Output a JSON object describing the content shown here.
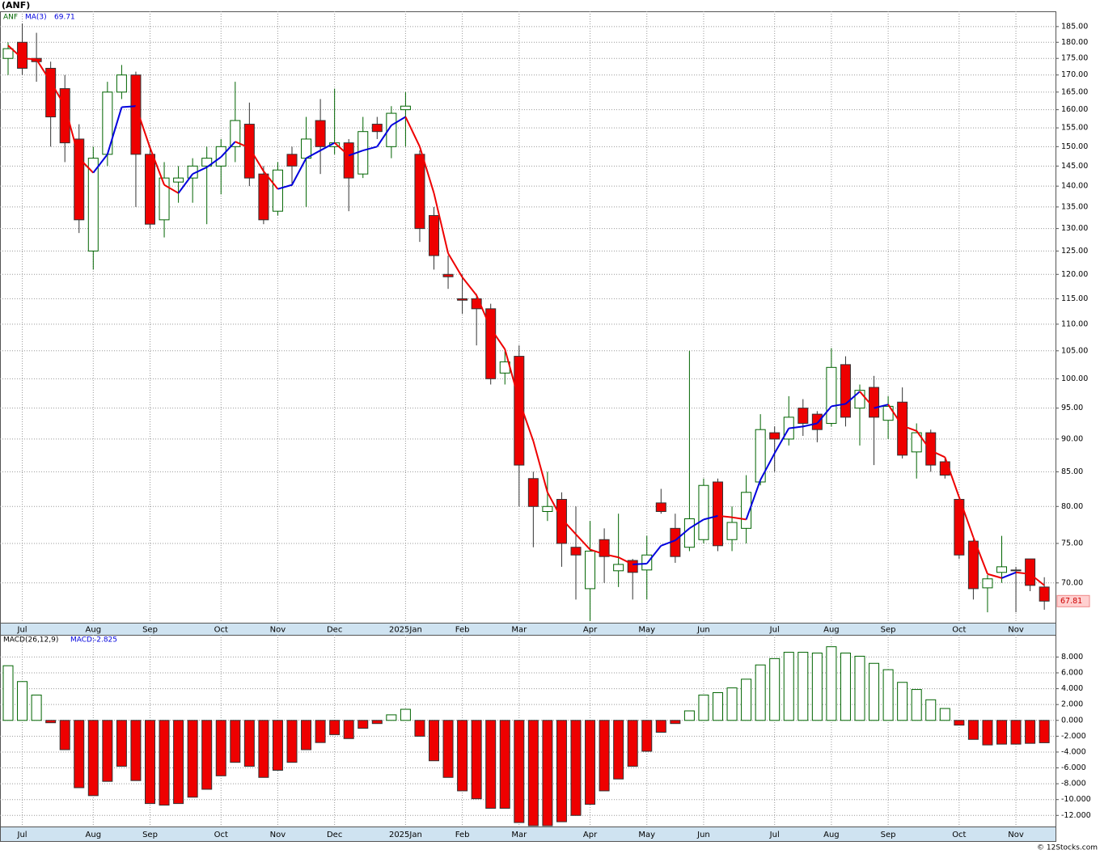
{
  "chart_data": [
    {
      "type": "candlestick",
      "title": "(ANF)",
      "categories": [
        null,
        "Jul",
        null,
        null,
        null,
        null,
        "Aug",
        null,
        null,
        null,
        "Sep",
        null,
        null,
        null,
        null,
        "Oct",
        null,
        null,
        null,
        "Nov",
        null,
        null,
        null,
        "Dec",
        null,
        null,
        null,
        null,
        "2025Jan",
        null,
        null,
        null,
        "Feb",
        null,
        null,
        null,
        "Mar",
        null,
        null,
        null,
        null,
        "Apr",
        null,
        null,
        null,
        "May",
        null,
        null,
        null,
        "Jun",
        null,
        null,
        null,
        null,
        "Jul",
        null,
        null,
        null,
        "Aug",
        null,
        null,
        null,
        "Sep",
        null,
        null,
        null,
        null,
        "Oct",
        null,
        null,
        null,
        "Nov",
        null,
        null
      ],
      "series": [
        {
          "name": "ANF",
          "color": "#006400",
          "down_color": "#ee0000",
          "open": [
            175,
            180,
            175,
            172,
            166,
            152,
            125,
            148,
            165,
            170,
            148,
            132,
            141,
            142,
            145,
            145,
            150,
            156,
            143,
            134,
            148,
            147,
            157,
            150,
            151,
            143,
            156,
            150,
            160,
            148,
            133,
            120,
            115,
            115,
            113,
            101,
            104,
            84,
            79.3,
            81,
            74.5,
            69.3,
            75.5,
            71.5,
            72.8,
            71.6,
            80.5,
            77,
            74.5,
            75.5,
            83.5,
            75.5,
            77,
            83.5,
            91,
            90,
            95,
            94,
            92.5,
            102.5,
            95,
            98.5,
            93,
            96,
            88,
            91,
            86.5,
            81,
            75.3,
            69.4,
            71.3,
            71.6,
            73,
            69.5
          ],
          "high": [
            180,
            186,
            183,
            174,
            170,
            156,
            150,
            168,
            173,
            171,
            150,
            146,
            145,
            147,
            150,
            152,
            168,
            162,
            145,
            146,
            150,
            158,
            163,
            166,
            152,
            158,
            158,
            161,
            165,
            149,
            135,
            124,
            120,
            116,
            114,
            105,
            106,
            85,
            85,
            82,
            80,
            78,
            77,
            79,
            73,
            76,
            82.5,
            79,
            105,
            84,
            84,
            80,
            84.5,
            94,
            92,
            97,
            96.5,
            94.5,
            105.5,
            104,
            99,
            100.5,
            97,
            98.5,
            92.5,
            91.5,
            87,
            81,
            75.5,
            71,
            76,
            72,
            73,
            70.7
          ],
          "low": [
            170,
            170,
            168,
            150,
            146,
            129,
            121,
            145,
            163,
            135,
            130,
            128,
            136,
            136,
            131,
            138,
            146,
            140,
            131,
            133,
            140,
            135,
            143,
            148,
            134,
            142,
            152,
            147,
            150,
            127,
            121,
            117,
            112,
            106,
            99,
            99,
            80,
            74.5,
            78,
            72,
            68,
            65.5,
            70,
            69.5,
            68,
            68,
            79,
            72.5,
            74,
            75,
            74,
            74,
            75,
            83,
            85,
            89,
            90.5,
            89.5,
            92,
            92,
            89,
            86,
            90,
            87,
            84,
            85,
            84,
            73,
            68,
            66.5,
            70,
            66.5,
            69,
            66.8
          ],
          "close": [
            178,
            172,
            174,
            158,
            151,
            132,
            147,
            165,
            170,
            148,
            131,
            142,
            142,
            145,
            147,
            150,
            157,
            142,
            132,
            144,
            145,
            152,
            150,
            151,
            142,
            154,
            154,
            159,
            161,
            130,
            124,
            119.5,
            114.7,
            113,
            100,
            103,
            86,
            80,
            80,
            75,
            73.5,
            74,
            73.3,
            72.3,
            71.3,
            73.5,
            79.3,
            73.3,
            78.3,
            83,
            74.7,
            77.8,
            82,
            91.5,
            90,
            93.5,
            92.5,
            91.5,
            102,
            93.5,
            98,
            93.5,
            95.3,
            87.5,
            91,
            86,
            84.5,
            73.5,
            69.3,
            70.5,
            72,
            71.5,
            69.7,
            67.81
          ]
        },
        {
          "name": "MA(3)",
          "type": "line",
          "color": "#0000dd",
          "down_color": "#ee0000",
          "values": [
            179,
            175,
            174.7,
            168,
            161,
            147,
            143.3,
            148,
            160.7,
            161,
            149.7,
            140.3,
            138.3,
            143,
            144.7,
            147.3,
            151.3,
            149.7,
            143.7,
            139.3,
            140.3,
            147,
            149,
            151,
            147.7,
            149,
            150,
            155.7,
            158,
            150,
            138.3,
            124.5,
            119.4,
            115.7,
            109.2,
            105.3,
            96.3,
            89.7,
            82,
            78.3,
            76.2,
            74.2,
            73.6,
            73.2,
            72.3,
            72.4,
            74.7,
            75.4,
            77,
            78.2,
            78.7,
            78.5,
            78.2,
            83.8,
            87.8,
            91.7,
            92,
            92.5,
            95.3,
            95.7,
            97.8,
            95,
            95.6,
            92.1,
            91.3,
            88.2,
            87.2,
            81.3,
            75.8,
            71.1,
            70.6,
            71.3,
            71.1,
            69.71
          ]
        }
      ],
      "ylim": [
        65.3,
        190
      ],
      "log_scale": true,
      "grid": true,
      "yticks": [
        {
          "value": 70,
          "label": "70.00"
        },
        {
          "value": 75,
          "label": "75.00"
        },
        {
          "value": 80,
          "label": "80.00"
        },
        {
          "value": 85,
          "label": "85.00"
        },
        {
          "value": 90,
          "label": "90.00"
        },
        {
          "value": 95,
          "label": "95.00"
        },
        {
          "value": 100,
          "label": "100.00"
        },
        {
          "value": 105,
          "label": "105.00"
        },
        {
          "value": 110,
          "label": "110.00"
        },
        {
          "value": 115,
          "label": "115.00"
        },
        {
          "value": 120,
          "label": "120.00"
        },
        {
          "value": 125,
          "label": "125.00"
        },
        {
          "value": 130,
          "label": "130.00"
        },
        {
          "value": 135,
          "label": "135.00"
        },
        {
          "value": 140,
          "label": "140.00"
        },
        {
          "value": 145,
          "label": "145.00"
        },
        {
          "value": 150,
          "label": "150.00"
        },
        {
          "value": 155,
          "label": "155.00"
        },
        {
          "value": 160,
          "label": "160.00"
        },
        {
          "value": 165,
          "label": "165.00"
        },
        {
          "value": 170,
          "label": "170.00"
        },
        {
          "value": 175,
          "label": "175.00"
        },
        {
          "value": 180,
          "label": "180.00"
        },
        {
          "value": 185,
          "label": "185.00"
        }
      ]
    },
    {
      "type": "bar",
      "title": "MACD(26,12,9)",
      "categories": [
        null,
        "Jul",
        null,
        null,
        null,
        null,
        "Aug",
        null,
        null,
        null,
        "Sep",
        null,
        null,
        null,
        null,
        "Oct",
        null,
        null,
        null,
        "Nov",
        null,
        null,
        null,
        "Dec",
        null,
        null,
        null,
        null,
        "2025Jan",
        null,
        null,
        null,
        "Feb",
        null,
        null,
        null,
        "Mar",
        null,
        null,
        null,
        null,
        "Apr",
        null,
        null,
        null,
        "May",
        null,
        null,
        null,
        "Jun",
        null,
        null,
        null,
        null,
        "Jul",
        null,
        null,
        null,
        "Aug",
        null,
        null,
        null,
        "Sep",
        null,
        null,
        null,
        null,
        "Oct",
        null,
        null,
        null,
        "Nov",
        null,
        null
      ],
      "series": [
        {
          "name": "MACD:",
          "color": "#006400",
          "down_color": "#ee0000",
          "values": [
            6.9,
            4.9,
            3.2,
            -0.3,
            -3.7,
            -8.5,
            -9.5,
            -7.7,
            -5.8,
            -7.6,
            -10.5,
            -10.7,
            -10.5,
            -9.7,
            -8.7,
            -7.0,
            -5.3,
            -5.8,
            -7.2,
            -6.3,
            -5.3,
            -3.7,
            -2.8,
            -1.8,
            -2.3,
            -1.0,
            -0.4,
            0.7,
            1.4,
            -2.0,
            -5.1,
            -7.2,
            -8.9,
            -9.9,
            -11.1,
            -11.1,
            -12.9,
            -13.3,
            -13.3,
            -12.8,
            -12.0,
            -10.6,
            -8.9,
            -7.4,
            -5.8,
            -3.9,
            -1.5,
            -0.4,
            1.2,
            3.2,
            3.5,
            4.1,
            5.2,
            7.0,
            7.8,
            8.6,
            8.6,
            8.5,
            9.3,
            8.5,
            8.1,
            7.2,
            6.4,
            4.8,
            3.9,
            2.6,
            1.5,
            -0.6,
            -2.4,
            -3.1,
            -3.0,
            -3.0,
            -2.9,
            -2.825
          ]
        }
      ],
      "ylim": [
        -13.4,
        10.8
      ],
      "grid": true,
      "yticks": [
        {
          "value": 8,
          "label": "8.000"
        },
        {
          "value": 6,
          "label": "6.000"
        },
        {
          "value": 4,
          "label": "4.000"
        },
        {
          "value": 2,
          "label": "2.000"
        },
        {
          "value": 0,
          "label": "0.000"
        },
        {
          "value": -2,
          "label": "-2.000"
        },
        {
          "value": -4,
          "label": "-4.000"
        },
        {
          "value": -6,
          "label": "-6.000"
        },
        {
          "value": -8,
          "label": "-8.000"
        },
        {
          "value": -10,
          "label": "-10.000"
        },
        {
          "value": -12,
          "label": "-12.000"
        }
      ]
    }
  ],
  "footer": "© 12Stocks.com"
}
